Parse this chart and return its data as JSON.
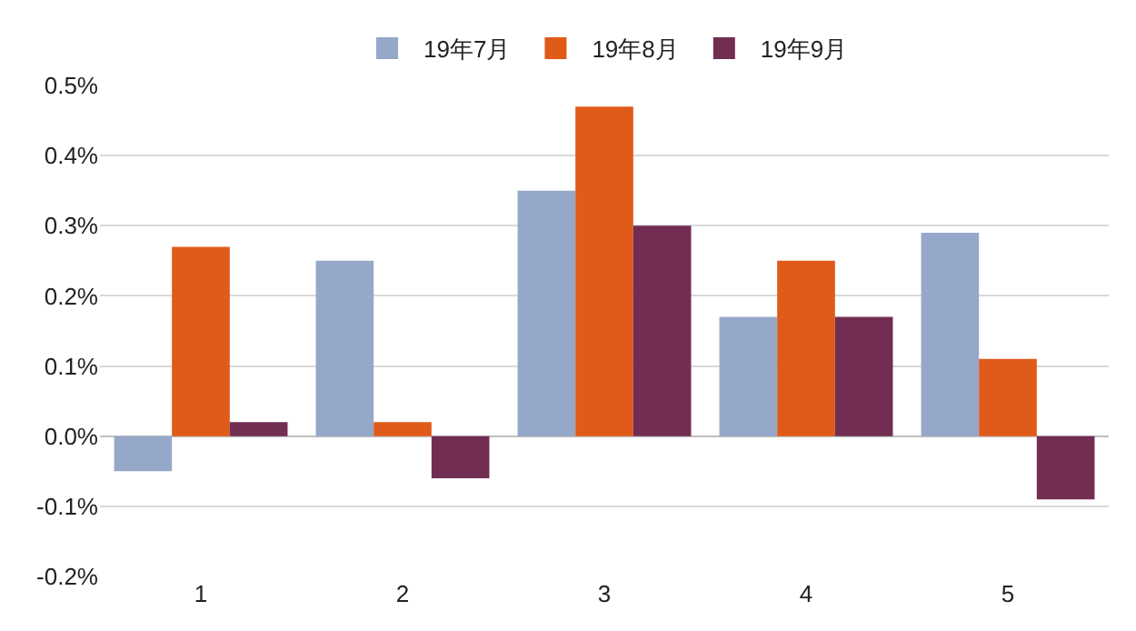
{
  "chart_data": {
    "type": "bar",
    "categories": [
      "1",
      "2",
      "3",
      "4",
      "5"
    ],
    "series": [
      {
        "name": "19年7月",
        "color": "#95a8c9",
        "values": [
          -0.05,
          0.25,
          0.35,
          0.17,
          0.29
        ]
      },
      {
        "name": "19年8月",
        "color": "#e05a1a",
        "values": [
          0.27,
          0.02,
          0.47,
          0.25,
          0.11
        ]
      },
      {
        "name": "19年9月",
        "color": "#722d52",
        "values": [
          0.02,
          -0.06,
          0.3,
          0.17,
          -0.09
        ]
      }
    ],
    "ylim": [
      -0.2,
      0.5
    ],
    "yticks": [
      {
        "value": -0.2,
        "label": "-0.2%"
      },
      {
        "value": -0.1,
        "label": "-0.1%"
      },
      {
        "value": 0,
        "label": "0.0%"
      },
      {
        "value": 0.1,
        "label": "0.1%"
      },
      {
        "value": 0.2,
        "label": "0.2%"
      },
      {
        "value": 0.3,
        "label": "0.3%"
      },
      {
        "value": 0.4,
        "label": "0.4%"
      },
      {
        "value": 0.5,
        "label": "0.5%"
      }
    ],
    "grid": "y",
    "legend": "top"
  }
}
